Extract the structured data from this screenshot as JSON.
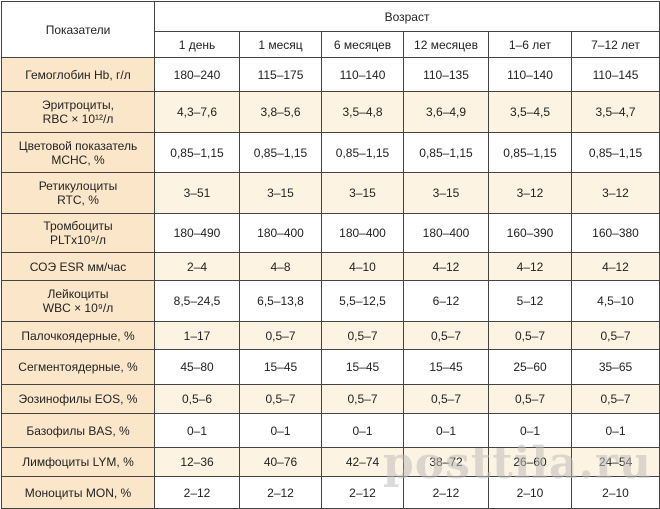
{
  "table": {
    "corner_header": "Показатели",
    "age_header": "Возраст",
    "age_columns": [
      "1 день",
      "1 месяц",
      "6 месяцев",
      "12 месяцев",
      "1–6 лет",
      "7–12 лет"
    ],
    "rows": [
      {
        "label": "Гемоглобин Hb, г/л",
        "sub": "",
        "values": [
          "180–240",
          "115–175",
          "110–140",
          "110–135",
          "110–140",
          "110–145"
        ]
      },
      {
        "label": "Эритроциты,",
        "sub": "RBC × 10¹²/л",
        "values": [
          "4,3–7,6",
          "3,8–5,6",
          "3,5–4,8",
          "3,6–4,9",
          "3,5–4,5",
          "3,5–4,7"
        ]
      },
      {
        "label": "Цветовой показатель",
        "sub": "MCHC, %",
        "values": [
          "0,85–1,15",
          "0,85–1,15",
          "0,85–1,15",
          "0,85–1,15",
          "0,85–1,15",
          "0,85–1,15"
        ]
      },
      {
        "label": "Ретикулоциты",
        "sub": "RTC, %",
        "values": [
          "3–51",
          "3–15",
          "3–15",
          "3–15",
          "3–12",
          "3–12"
        ]
      },
      {
        "label": "Тромбоциты",
        "sub": "PLTx10⁹/л",
        "values": [
          "180–490",
          "180–400",
          "180–400",
          "180–400",
          "160–390",
          "160–380"
        ]
      },
      {
        "label": "СОЭ ESR мм/час",
        "sub": "",
        "values": [
          "2–4",
          "4–8",
          "4–10",
          "4–12",
          "4–12",
          "4–12"
        ]
      },
      {
        "label": "Лейкоциты",
        "sub": "WBC × 10⁹/л",
        "values": [
          "8,5–24,5",
          "6,5–13,8",
          "5,5–12,5",
          "6–12",
          "5–12",
          "4,5–10"
        ]
      },
      {
        "label": "Палочкоядерные, %",
        "sub": "",
        "values": [
          "1–17",
          "0,5–7",
          "0,5–7",
          "0,5–7",
          "0,5–7",
          "0,5–7"
        ]
      },
      {
        "label": "Сегментоядерные, %",
        "sub": "",
        "values": [
          "45–80",
          "15–45",
          "15–45",
          "15–45",
          "25–60",
          "35–65"
        ]
      },
      {
        "label": "Эозинофилы EOS, %",
        "sub": "",
        "values": [
          "0,5–6",
          "0,5–7",
          "0,5–7",
          "0,5–7",
          "0,5–7",
          "0,5–7"
        ]
      },
      {
        "label": "Базофилы BAS, %",
        "sub": "",
        "values": [
          "0–1",
          "0–1",
          "0–1",
          "0–1",
          "0–1",
          "0–1"
        ]
      },
      {
        "label": "Лимфоциты LYM, %",
        "sub": "",
        "values": [
          "12–36",
          "40–76",
          "42–74",
          "38–72",
          "26–60",
          "24–54"
        ]
      },
      {
        "label": "Моноциты MON, %",
        "sub": "",
        "values": [
          "2–12",
          "2–12",
          "2–12",
          "2–12",
          "2–10",
          "2–10"
        ]
      }
    ]
  },
  "watermark": "posttila.ru",
  "colors": {
    "label_bg": "#fbe6c9",
    "alt_row_bg": "#fdf3e3",
    "border": "#444444"
  }
}
